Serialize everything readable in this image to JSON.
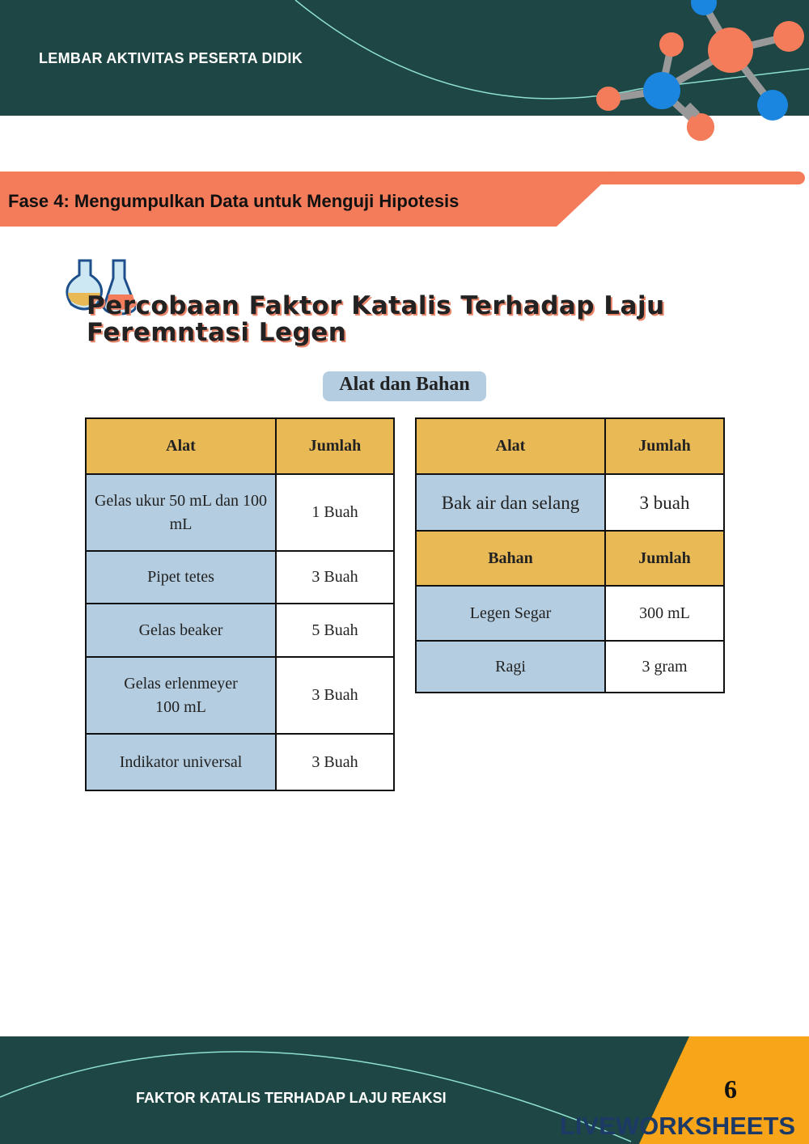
{
  "header": {
    "title": "LEMBAR AKTIVITAS PESERTA DIDIK"
  },
  "phase": {
    "title": "Fase 4: Mengumpulkan Data untuk Menguji Hipotesis"
  },
  "main": {
    "title": "Percobaan Faktor Katalis Terhadap Laju Feremntasi Legen",
    "subheading": "Alat dan Bahan",
    "table_left": {
      "headers": [
        "Alat",
        "Jumlah"
      ],
      "rows": [
        [
          "Gelas ukur 50 mL dan 100 mL",
          "1 Buah"
        ],
        [
          "Pipet tetes",
          "3 Buah"
        ],
        [
          "Gelas beaker",
          "5 Buah"
        ],
        [
          "Gelas erlenmeyer 100 mL",
          "3 Buah"
        ],
        [
          "Indikator universal",
          "3 Buah"
        ]
      ]
    },
    "table_right": {
      "alat_headers": [
        "Alat",
        "Jumlah"
      ],
      "alat_rows": [
        [
          "Bak air dan selang",
          "3 buah"
        ]
      ],
      "bahan_headers": [
        "Bahan",
        "Jumlah"
      ],
      "bahan_rows": [
        [
          "Legen Segar",
          "300 mL"
        ],
        [
          "Ragi",
          "3 gram"
        ]
      ]
    }
  },
  "footer": {
    "title": "FAKTOR KATALIS TERHADAP LAJU REAKSI",
    "page_number": "6",
    "watermark": "LIVEWORKSHEETS"
  },
  "colors": {
    "dark_teal": "#1d4644",
    "orange": "#f47c5a",
    "header_yellow": "#e8b955",
    "cell_blue": "#b4cde0",
    "accent_amber": "#f9a51a"
  }
}
